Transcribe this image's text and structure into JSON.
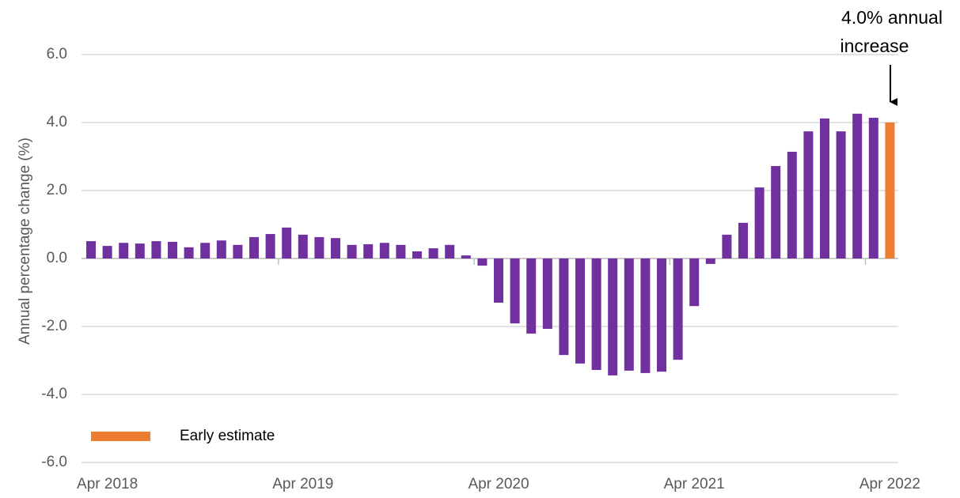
{
  "chart_data": {
    "type": "bar",
    "y_label": "Annual percentage change (%)",
    "annotation": [
      "4.0% annual",
      "increase"
    ],
    "categories": [
      null,
      "Apr 2018",
      null,
      null,
      null,
      null,
      null,
      null,
      null,
      null,
      null,
      null,
      null,
      "Apr 2019",
      null,
      null,
      null,
      null,
      null,
      null,
      null,
      null,
      null,
      null,
      null,
      "Apr 2020",
      null,
      null,
      null,
      null,
      null,
      null,
      null,
      null,
      null,
      null,
      null,
      "Apr 2021",
      null,
      null,
      null,
      null,
      null,
      null,
      null,
      null,
      null,
      null,
      null,
      "Apr 2022"
    ],
    "series": [
      {
        "color": "#7030a0",
        "values": [
          0.51,
          0.37,
          0.46,
          0.44,
          0.51,
          0.49,
          0.33,
          0.46,
          0.53,
          0.4,
          0.63,
          0.72,
          0.91,
          0.7,
          0.63,
          0.6,
          0.4,
          0.42,
          0.46,
          0.4,
          0.21,
          0.3,
          0.4,
          0.09,
          -0.21,
          -1.3,
          -1.91,
          -2.21,
          -2.07,
          -2.84,
          -3.09,
          -3.28,
          -3.44,
          -3.3,
          -3.37,
          -3.33,
          -2.98,
          -1.4,
          -0.16,
          0.7,
          1.05,
          2.09,
          2.72,
          3.14,
          3.74,
          4.12,
          3.74,
          4.26,
          4.14,
          null
        ]
      },
      {
        "name": "Early estimate",
        "color": "#ed7d31",
        "values": [
          null,
          null,
          null,
          null,
          null,
          null,
          null,
          null,
          null,
          null,
          null,
          null,
          null,
          null,
          null,
          null,
          null,
          null,
          null,
          null,
          null,
          null,
          null,
          null,
          null,
          null,
          null,
          null,
          null,
          null,
          null,
          null,
          null,
          null,
          null,
          null,
          null,
          null,
          null,
          null,
          null,
          null,
          null,
          null,
          null,
          null,
          null,
          null,
          null,
          4.0
        ]
      }
    ],
    "ylim": [
      -6,
      6
    ],
    "yticks": [
      {
        "value": -6,
        "label": "-6.0"
      },
      {
        "value": -4,
        "label": "-4.0"
      },
      {
        "value": -2,
        "label": "-2.0"
      },
      {
        "value": 0,
        "label": "0.0"
      },
      {
        "value": 2,
        "label": "2.0"
      },
      {
        "value": 4,
        "label": "4.0"
      },
      {
        "value": 6,
        "label": "6.0"
      }
    ],
    "grid": true
  }
}
